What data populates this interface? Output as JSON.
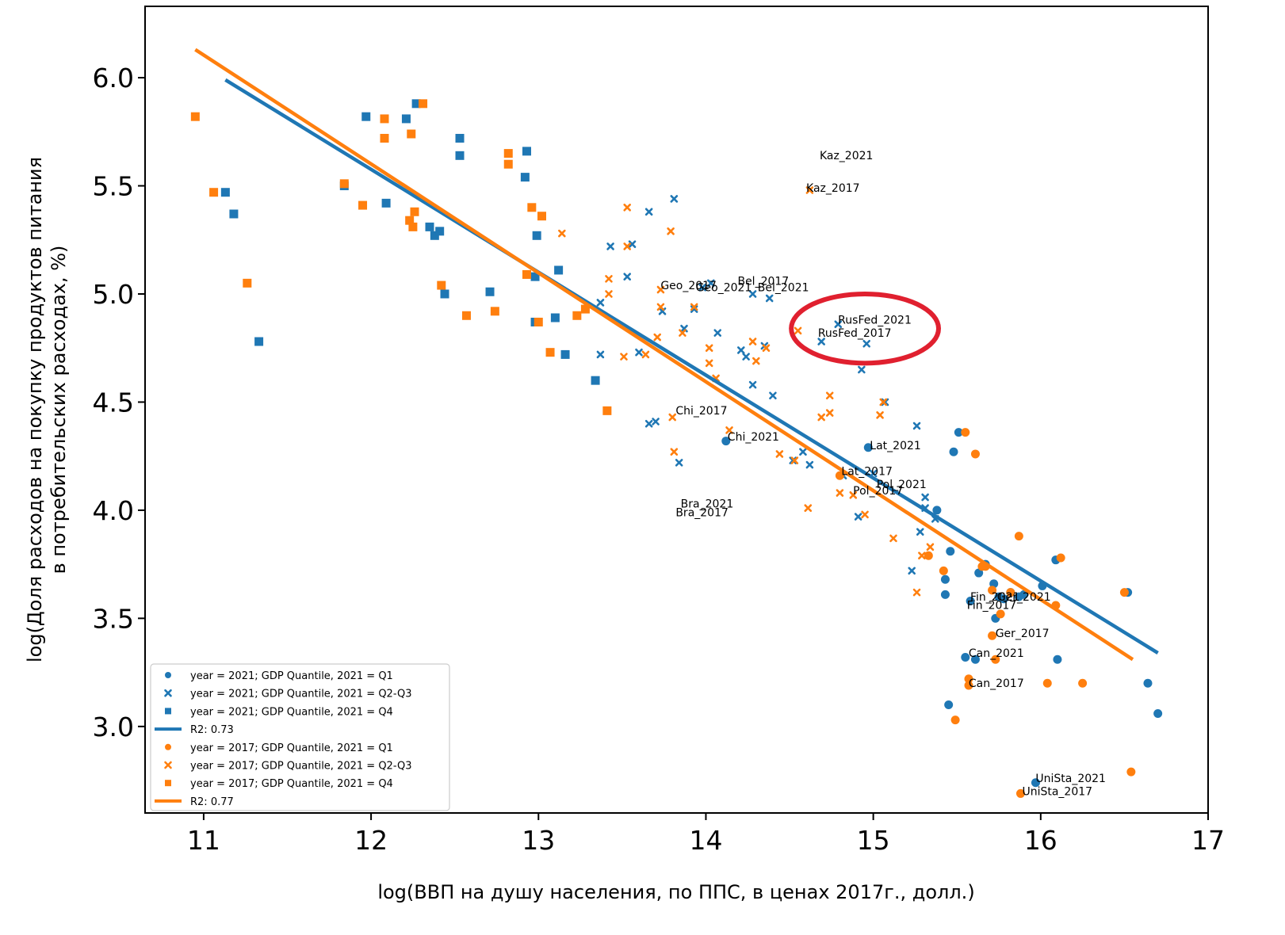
{
  "colors": {
    "blue": "#1f77b4",
    "orange": "#ff7f0e",
    "highlight": "#e0202f"
  },
  "chart_data": {
    "type": "scatter",
    "xlabel": "log(ВВП на душу населения, по ППС, в ценах 2017г., долл.)",
    "ylabel_line1": "log(Доля расходов на покупку продуктов питания",
    "ylabel_line2": "в потребительских расходах, %)",
    "xlim": [
      10.65,
      17.0
    ],
    "ylim": [
      2.6,
      6.33
    ],
    "x_ticks": [
      11,
      12,
      13,
      14,
      15,
      16,
      17
    ],
    "x_tick_labels": [
      "11",
      "12",
      "13",
      "14",
      "15",
      "16",
      "17"
    ],
    "y_ticks": [
      3.0,
      3.5,
      4.0,
      4.5,
      5.0,
      5.5,
      6.0
    ],
    "y_tick_labels": [
      "3.0",
      "3.5",
      "4.0",
      "4.5",
      "5.0",
      "5.5",
      "6.0"
    ],
    "grid": false,
    "legend_position": "lower-left",
    "legend": [
      {
        "label": "year = 2021; GDP Quantile, 2021 = Q1",
        "marker": "circle",
        "color": "blue"
      },
      {
        "label": "year = 2021; GDP Quantile, 2021 = Q2-Q3",
        "marker": "x",
        "color": "blue"
      },
      {
        "label": "year = 2021; GDP Quantile, 2021 = Q4",
        "marker": "square",
        "color": "blue"
      },
      {
        "label": "R2: 0.73",
        "marker": "line",
        "color": "blue"
      },
      {
        "label": "year = 2017; GDP Quantile, 2021 = Q1",
        "marker": "circle",
        "color": "orange"
      },
      {
        "label": "year = 2017; GDP Quantile, 2021 = Q2-Q3",
        "marker": "x",
        "color": "orange"
      },
      {
        "label": "year = 2017; GDP Quantile, 2021 = Q4",
        "marker": "square",
        "color": "orange"
      },
      {
        "label": "R2: 0.77",
        "marker": "line",
        "color": "orange"
      }
    ],
    "trend_lines": [
      {
        "color": "blue",
        "x": [
          11.13,
          16.7
        ],
        "y": [
          5.99,
          3.34
        ]
      },
      {
        "color": "orange",
        "x": [
          10.95,
          16.55
        ],
        "y": [
          6.13,
          3.31
        ]
      }
    ],
    "series": [
      {
        "color": "blue",
        "marker": "square",
        "points": [
          [
            11.13,
            5.47
          ],
          [
            11.18,
            5.37
          ],
          [
            11.33,
            4.78
          ],
          [
            11.84,
            5.5
          ],
          [
            11.97,
            5.82
          ],
          [
            12.09,
            5.42
          ],
          [
            12.21,
            5.81
          ],
          [
            12.27,
            5.88
          ],
          [
            12.35,
            5.31
          ],
          [
            12.38,
            5.27
          ],
          [
            12.41,
            5.29
          ],
          [
            12.44,
            5.0
          ],
          [
            12.53,
            5.72
          ],
          [
            12.53,
            5.64
          ],
          [
            12.71,
            5.01
          ],
          [
            12.92,
            5.54
          ],
          [
            12.93,
            5.66
          ],
          [
            12.98,
            4.87
          ],
          [
            12.98,
            5.08
          ],
          [
            12.99,
            5.27
          ],
          [
            13.1,
            4.89
          ],
          [
            13.12,
            5.11
          ],
          [
            13.16,
            4.72
          ],
          [
            13.34,
            4.6
          ]
        ]
      },
      {
        "color": "blue",
        "marker": "x",
        "points": [
          [
            13.43,
            5.22
          ],
          [
            13.37,
            4.96
          ],
          [
            13.37,
            4.72
          ],
          [
            13.53,
            5.08
          ],
          [
            13.56,
            5.23
          ],
          [
            13.6,
            4.73
          ],
          [
            13.66,
            5.38
          ],
          [
            13.66,
            4.4
          ],
          [
            13.7,
            4.41
          ],
          [
            13.74,
            4.92
          ],
          [
            13.81,
            5.44
          ],
          [
            13.84,
            4.22
          ],
          [
            13.87,
            4.84
          ],
          [
            13.93,
            4.93
          ],
          [
            13.98,
            5.03
          ],
          [
            14.03,
            5.05
          ],
          [
            14.07,
            4.82
          ],
          [
            14.21,
            4.74
          ],
          [
            14.24,
            4.71
          ],
          [
            14.28,
            4.58
          ],
          [
            14.28,
            5.0
          ],
          [
            14.35,
            4.76
          ],
          [
            14.38,
            4.98
          ],
          [
            14.4,
            4.53
          ],
          [
            14.52,
            4.23
          ],
          [
            14.58,
            4.27
          ],
          [
            14.62,
            4.21
          ],
          [
            14.69,
            4.78
          ],
          [
            14.79,
            4.86
          ],
          [
            14.82,
            4.16
          ],
          [
            14.91,
            3.97
          ],
          [
            14.93,
            4.65
          ],
          [
            14.96,
            4.77
          ],
          [
            15.0,
            4.17
          ],
          [
            15.07,
            4.5
          ],
          [
            15.23,
            3.72
          ],
          [
            15.26,
            4.39
          ],
          [
            15.28,
            3.9
          ],
          [
            15.31,
            4.06
          ],
          [
            15.31,
            4.01
          ],
          [
            15.37,
            3.96
          ]
        ]
      },
      {
        "color": "blue",
        "marker": "circle",
        "points": [
          [
            14.12,
            4.32
          ],
          [
            14.97,
            4.29
          ],
          [
            15.38,
            4.0
          ],
          [
            15.45,
            3.1
          ],
          [
            15.46,
            3.81
          ],
          [
            15.43,
            3.68
          ],
          [
            15.43,
            3.61
          ],
          [
            15.48,
            4.27
          ],
          [
            15.51,
            4.36
          ],
          [
            15.55,
            3.32
          ],
          [
            15.58,
            3.58
          ],
          [
            15.61,
            3.31
          ],
          [
            15.63,
            3.71
          ],
          [
            15.67,
            3.75
          ],
          [
            15.72,
            3.66
          ],
          [
            15.73,
            3.5
          ],
          [
            15.75,
            3.6
          ],
          [
            15.78,
            3.59
          ],
          [
            15.82,
            3.62
          ],
          [
            15.87,
            3.6
          ],
          [
            15.9,
            3.61
          ],
          [
            15.97,
            2.74
          ],
          [
            16.01,
            3.65
          ],
          [
            16.09,
            3.77
          ],
          [
            16.1,
            3.31
          ],
          [
            16.52,
            3.62
          ],
          [
            16.64,
            3.2
          ],
          [
            16.7,
            3.06
          ]
        ]
      },
      {
        "color": "orange",
        "marker": "square",
        "points": [
          [
            10.95,
            5.82
          ],
          [
            11.06,
            5.47
          ],
          [
            11.26,
            5.05
          ],
          [
            11.84,
            5.51
          ],
          [
            11.95,
            5.41
          ],
          [
            12.08,
            5.81
          ],
          [
            12.08,
            5.72
          ],
          [
            12.23,
            5.34
          ],
          [
            12.24,
            5.74
          ],
          [
            12.25,
            5.31
          ],
          [
            12.26,
            5.38
          ],
          [
            12.31,
            5.88
          ],
          [
            12.42,
            5.04
          ],
          [
            12.57,
            4.9
          ],
          [
            12.74,
            4.92
          ],
          [
            12.82,
            5.6
          ],
          [
            12.82,
            5.65
          ],
          [
            12.93,
            5.09
          ],
          [
            12.96,
            5.4
          ],
          [
            13.0,
            4.87
          ],
          [
            13.02,
            5.36
          ],
          [
            13.07,
            4.73
          ],
          [
            13.23,
            4.9
          ],
          [
            13.28,
            4.93
          ],
          [
            13.41,
            4.46
          ]
        ]
      },
      {
        "color": "orange",
        "marker": "x",
        "points": [
          [
            13.14,
            5.28
          ],
          [
            13.42,
            5.07
          ],
          [
            13.42,
            5.0
          ],
          [
            13.51,
            4.71
          ],
          [
            13.53,
            5.22
          ],
          [
            13.53,
            5.4
          ],
          [
            13.64,
            4.72
          ],
          [
            13.71,
            4.8
          ],
          [
            13.73,
            4.94
          ],
          [
            13.73,
            5.02
          ],
          [
            13.79,
            5.29
          ],
          [
            13.8,
            4.43
          ],
          [
            13.81,
            4.27
          ],
          [
            13.86,
            4.82
          ],
          [
            13.93,
            4.94
          ],
          [
            14.02,
            4.68
          ],
          [
            14.02,
            4.75
          ],
          [
            14.06,
            4.61
          ],
          [
            14.14,
            4.37
          ],
          [
            14.28,
            4.78
          ],
          [
            14.3,
            4.69
          ],
          [
            14.36,
            4.75
          ],
          [
            14.44,
            4.26
          ],
          [
            14.53,
            4.23
          ],
          [
            14.55,
            4.83
          ],
          [
            14.61,
            4.01
          ],
          [
            14.62,
            5.48
          ],
          [
            14.69,
            4.43
          ],
          [
            14.74,
            4.45
          ],
          [
            14.74,
            4.53
          ],
          [
            14.8,
            4.08
          ],
          [
            14.88,
            4.07
          ],
          [
            14.95,
            3.98
          ],
          [
            15.06,
            4.5
          ],
          [
            15.04,
            4.44
          ],
          [
            15.12,
            3.87
          ],
          [
            15.26,
            3.62
          ],
          [
            15.29,
            3.79
          ],
          [
            15.34,
            3.83
          ]
        ]
      },
      {
        "color": "orange",
        "marker": "circle",
        "points": [
          [
            14.8,
            4.16
          ],
          [
            15.33,
            3.79
          ],
          [
            15.42,
            3.72
          ],
          [
            15.49,
            3.03
          ],
          [
            15.55,
            4.36
          ],
          [
            15.57,
            3.19
          ],
          [
            15.57,
            3.22
          ],
          [
            15.61,
            4.26
          ],
          [
            15.65,
            3.74
          ],
          [
            15.67,
            3.74
          ],
          [
            15.71,
            3.63
          ],
          [
            15.71,
            3.42
          ],
          [
            15.73,
            3.31
          ],
          [
            15.76,
            3.52
          ],
          [
            15.82,
            3.62
          ],
          [
            15.87,
            3.88
          ],
          [
            15.88,
            2.69
          ],
          [
            16.04,
            3.2
          ],
          [
            16.09,
            3.56
          ],
          [
            16.12,
            3.78
          ],
          [
            16.25,
            3.2
          ],
          [
            16.5,
            3.62
          ],
          [
            16.54,
            2.79
          ]
        ]
      }
    ],
    "annotations": [
      {
        "text": "Kaz_2021",
        "x": 14.67,
        "y": 5.63,
        "color": "blue"
      },
      {
        "text": "Kaz_2017",
        "x": 14.59,
        "y": 5.48,
        "color": "orange"
      },
      {
        "text": "Geo_2017",
        "x": 13.72,
        "y": 5.03,
        "color": "orange"
      },
      {
        "text": "Geo_2021",
        "x": 13.93,
        "y": 5.02,
        "color": "blue"
      },
      {
        "text": "Bel_2017",
        "x": 14.18,
        "y": 5.05,
        "color": "orange"
      },
      {
        "text": "Bel_2021",
        "x": 14.3,
        "y": 5.02,
        "color": "blue"
      },
      {
        "text": "RusFed_2021",
        "x": 14.78,
        "y": 4.87,
        "color": "blue"
      },
      {
        "text": "RusFed_2017",
        "x": 14.66,
        "y": 4.81,
        "color": "orange"
      },
      {
        "text": "Chi_2017",
        "x": 13.81,
        "y": 4.45,
        "color": "orange"
      },
      {
        "text": "Chi_2021",
        "x": 14.12,
        "y": 4.33,
        "color": "blue"
      },
      {
        "text": "Lat_2021",
        "x": 14.97,
        "y": 4.29,
        "color": "blue"
      },
      {
        "text": "Lat_2017",
        "x": 14.8,
        "y": 4.17,
        "color": "orange"
      },
      {
        "text": "Pol_2021",
        "x": 15.01,
        "y": 4.11,
        "color": "blue"
      },
      {
        "text": "Pol_2017",
        "x": 14.87,
        "y": 4.08,
        "color": "orange"
      },
      {
        "text": "Bra_2021",
        "x": 13.84,
        "y": 4.02,
        "color": "blue"
      },
      {
        "text": "Bra_2017",
        "x": 13.81,
        "y": 3.98,
        "color": "orange"
      },
      {
        "text": "Fin_2021",
        "x": 15.57,
        "y": 3.59,
        "color": "blue"
      },
      {
        "text": "Ger_2021",
        "x": 15.73,
        "y": 3.59,
        "color": "blue"
      },
      {
        "text": "Fin_2017",
        "x": 15.55,
        "y": 3.55,
        "color": "orange"
      },
      {
        "text": "Ger_2017",
        "x": 15.72,
        "y": 3.42,
        "color": "orange"
      },
      {
        "text": "Can_2021",
        "x": 15.56,
        "y": 3.33,
        "color": "blue"
      },
      {
        "text": "Can_2017",
        "x": 15.56,
        "y": 3.19,
        "color": "orange"
      },
      {
        "text": "UniSta_2021",
        "x": 15.96,
        "y": 2.75,
        "color": "blue"
      },
      {
        "text": "UniSta_2017",
        "x": 15.88,
        "y": 2.69,
        "color": "orange"
      }
    ],
    "highlight": {
      "shape": "ellipse",
      "cx": 14.95,
      "cy": 4.84,
      "rx": 0.44,
      "ry": 0.16,
      "label": "RusFed"
    }
  }
}
